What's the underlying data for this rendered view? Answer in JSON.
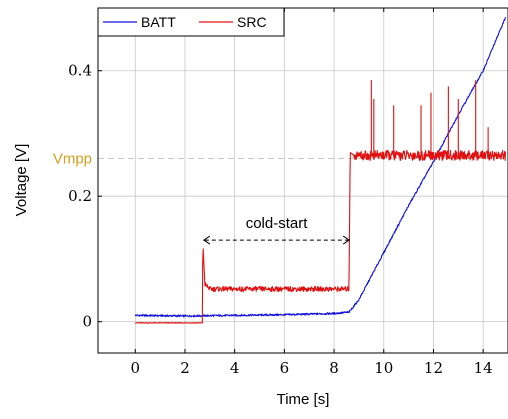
{
  "chart_data": {
    "type": "line",
    "title": "",
    "xlabel": "Time [s]",
    "ylabel": "Voltage [V]",
    "xlim": [
      -1.5,
      15
    ],
    "ylim": [
      -0.05,
      0.5
    ],
    "x_ticks": [
      0,
      2,
      4,
      6,
      8,
      10,
      12,
      14
    ],
    "y_ticks": [
      {
        "value": 0,
        "label": "0"
      },
      {
        "value": 0.2,
        "label": "0.2"
      },
      {
        "value": 0.4,
        "label": "0.4"
      }
    ],
    "grid": true,
    "legend": {
      "placement": "top-left"
    },
    "series": [
      {
        "name": "BATT",
        "color": "#1010e0",
        "x": [
          0,
          2,
          4,
          6,
          8,
          8.6,
          9.0,
          10,
          11,
          12,
          13,
          14,
          14.9
        ],
        "y": [
          0.01,
          0.009,
          0.01,
          0.011,
          0.013,
          0.015,
          0.035,
          0.11,
          0.185,
          0.255,
          0.33,
          0.4,
          0.485
        ]
      },
      {
        "name": "SRC",
        "color": "#e01010",
        "x": [
          0,
          2.7,
          2.72,
          2.8,
          3.0,
          8.6,
          8.65,
          8.8,
          14.9
        ],
        "y": [
          -0.002,
          -0.002,
          0.125,
          0.06,
          0.052,
          0.052,
          0.27,
          0.265,
          0.265
        ],
        "spikes": [
          {
            "x": 9.5,
            "y": 0.385
          },
          {
            "x": 9.6,
            "y": 0.355
          },
          {
            "x": 10.4,
            "y": 0.345
          },
          {
            "x": 11.5,
            "y": 0.345
          },
          {
            "x": 11.9,
            "y": 0.365
          },
          {
            "x": 12.6,
            "y": 0.375
          },
          {
            "x": 13.0,
            "y": 0.355
          },
          {
            "x": 13.7,
            "y": 0.385
          },
          {
            "x": 14.2,
            "y": 0.31
          }
        ]
      }
    ],
    "reference_line": {
      "label": "Vmpp",
      "y": 0.26,
      "color": "#d4a020"
    },
    "annotation": {
      "label": "cold-start",
      "x_start": 2.72,
      "x_end": 8.65,
      "y": 0.13
    }
  }
}
